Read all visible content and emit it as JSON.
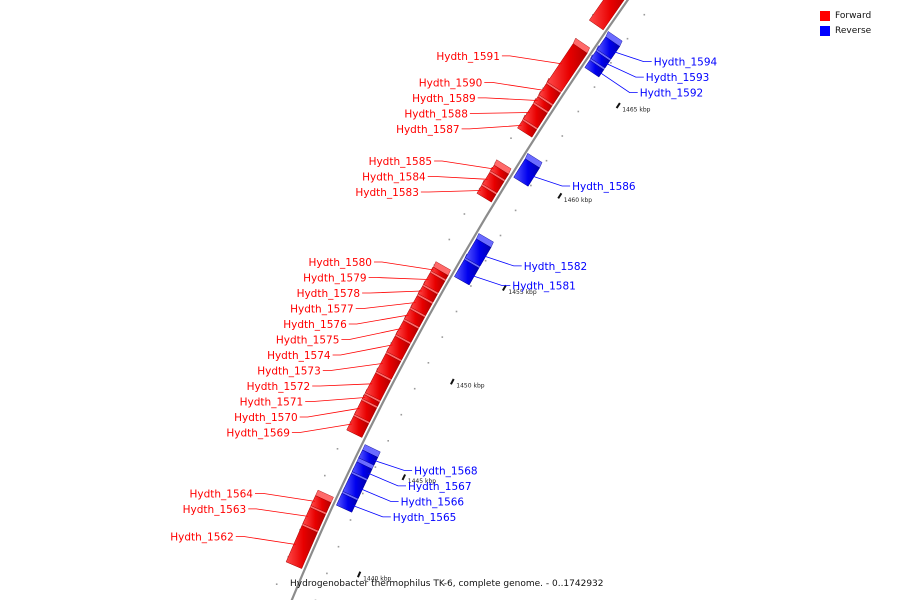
{
  "legend": {
    "forward_label": "Forward",
    "reverse_label": "Reverse",
    "forward_color": "#ff0000",
    "reverse_color": "#0000ff"
  },
  "caption": "Hydrogenobacter thermophilus TK-6, complete genome. - 0..1742932",
  "backbone_color": "#8c8c8c",
  "kbp_ticks": [
    {
      "pos": 1440,
      "label": "1440 kbp"
    },
    {
      "pos": 1445,
      "label": "1445 kbp"
    },
    {
      "pos": 1450,
      "label": "1450 kbp"
    },
    {
      "pos": 1455,
      "label": "1455 kbp"
    },
    {
      "pos": 1460,
      "label": "1460 kbp"
    },
    {
      "pos": 1465,
      "label": "1465 kbp"
    }
  ],
  "genes": [
    {
      "id": "Hydth_1562",
      "strand": "forward",
      "start": 1439.2,
      "end": 1441.0
    },
    {
      "id": "Hydth_1563",
      "strand": "forward",
      "start": 1441.1,
      "end": 1441.9
    },
    {
      "id": "Hydth_1564",
      "strand": "forward",
      "start": 1442.0,
      "end": 1442.5
    },
    {
      "id": "Hydth_1565",
      "strand": "reverse",
      "start": 1442.5,
      "end": 1443.1
    },
    {
      "id": "Hydth_1566",
      "strand": "reverse",
      "start": 1443.2,
      "end": 1444.1
    },
    {
      "id": "Hydth_1567",
      "strand": "reverse",
      "start": 1444.2,
      "end": 1444.7
    },
    {
      "id": "Hydth_1568",
      "strand": "reverse",
      "start": 1444.9,
      "end": 1445.3
    },
    {
      "id": "Hydth_1569",
      "strand": "forward",
      "start": 1445.8,
      "end": 1446.5
    },
    {
      "id": "Hydth_1570",
      "strand": "forward",
      "start": 1446.6,
      "end": 1447.3
    },
    {
      "id": "Hydth_1571",
      "strand": "forward",
      "start": 1447.4,
      "end": 1447.6
    },
    {
      "id": "Hydth_1572",
      "strand": "forward",
      "start": 1447.7,
      "end": 1448.7
    },
    {
      "id": "Hydth_1573",
      "strand": "forward",
      "start": 1448.8,
      "end": 1449.7
    },
    {
      "id": "Hydth_1574",
      "strand": "forward",
      "start": 1449.8,
      "end": 1450.6
    },
    {
      "id": "Hydth_1575",
      "strand": "forward",
      "start": 1450.7,
      "end": 1451.4
    },
    {
      "id": "Hydth_1576",
      "strand": "forward",
      "start": 1451.5,
      "end": 1452.0
    },
    {
      "id": "Hydth_1577",
      "strand": "forward",
      "start": 1452.1,
      "end": 1452.7
    },
    {
      "id": "Hydth_1578",
      "strand": "forward",
      "start": 1452.8,
      "end": 1453.2
    },
    {
      "id": "Hydth_1579",
      "strand": "forward",
      "start": 1453.3,
      "end": 1453.9
    },
    {
      "id": "Hydth_1580",
      "strand": "forward",
      "start": 1454.0,
      "end": 1454.2
    },
    {
      "id": "Hydth_1581",
      "strand": "reverse",
      "start": 1454.3,
      "end": 1455.2
    },
    {
      "id": "Hydth_1582",
      "strand": "reverse",
      "start": 1455.3,
      "end": 1456.3
    },
    {
      "id": "Hydth_1583",
      "strand": "forward",
      "start": 1458.1,
      "end": 1458.5
    },
    {
      "id": "Hydth_1584",
      "strand": "forward",
      "start": 1458.6,
      "end": 1459.2
    },
    {
      "id": "Hydth_1585",
      "strand": "forward",
      "start": 1459.3,
      "end": 1459.6
    },
    {
      "id": "Hydth_1586",
      "strand": "reverse",
      "start": 1459.6,
      "end": 1460.6
    },
    {
      "id": "Hydth_1587",
      "strand": "forward",
      "start": 1461.6,
      "end": 1462.0
    },
    {
      "id": "Hydth_1588",
      "strand": "forward",
      "start": 1462.1,
      "end": 1462.9
    },
    {
      "id": "Hydth_1589",
      "strand": "forward",
      "start": 1463.0,
      "end": 1463.3
    },
    {
      "id": "Hydth_1590",
      "strand": "forward",
      "start": 1463.4,
      "end": 1464.0
    },
    {
      "id": "Hydth_1591",
      "strand": "forward",
      "start": 1464.1,
      "end": 1466.2
    },
    {
      "id": "Hydth_1592",
      "strand": "reverse",
      "start": 1465.6,
      "end": 1466.0
    },
    {
      "id": "Hydth_1593",
      "strand": "reverse",
      "start": 1466.1,
      "end": 1466.5
    },
    {
      "id": "Hydth_1594",
      "strand": "reverse",
      "start": 1466.6,
      "end": 1467.3
    },
    {
      "id": "",
      "strand": "forward",
      "start": 1467.5,
      "end": 1469.5
    }
  ]
}
